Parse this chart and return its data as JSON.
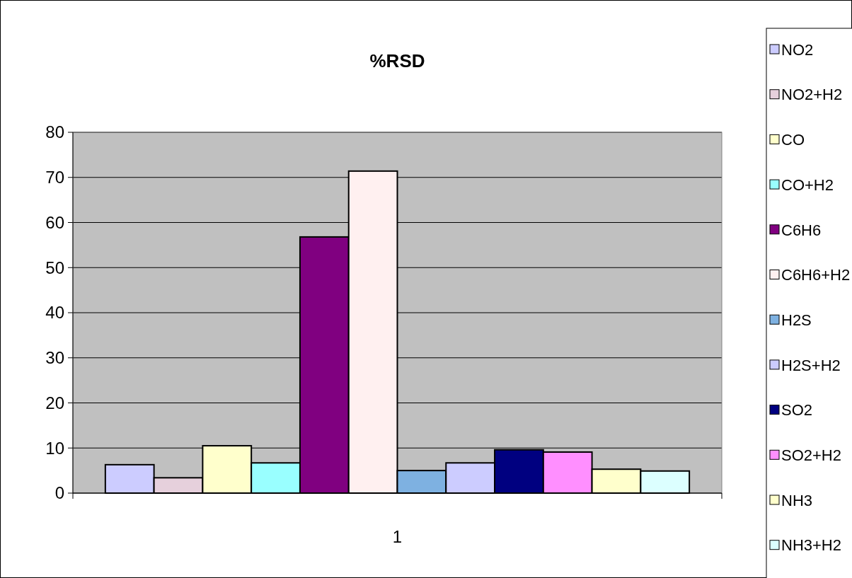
{
  "chart_data": {
    "type": "bar",
    "title": "%RSD",
    "categories": [
      "1"
    ],
    "series": [
      {
        "name": "NO2",
        "color": "#ccccff",
        "values": [
          6.3
        ]
      },
      {
        "name": "NO2+H2",
        "color": "#e6d0dc",
        "values": [
          3.4
        ]
      },
      {
        "name": "CO",
        "color": "#ffffcc",
        "values": [
          10.5
        ]
      },
      {
        "name": "CO+H2",
        "color": "#99ffff",
        "values": [
          6.7
        ]
      },
      {
        "name": "C6H6",
        "color": "#800080",
        "values": [
          56.8
        ]
      },
      {
        "name": "C6H6+H2",
        "color": "#fff0f0",
        "values": [
          71.4
        ]
      },
      {
        "name": "H2S",
        "color": "#7eb1e1",
        "values": [
          5.0
        ]
      },
      {
        "name": "H2S+H2",
        "color": "#ccccff",
        "values": [
          6.7
        ]
      },
      {
        "name": "SO2",
        "color": "#000080",
        "values": [
          9.6
        ]
      },
      {
        "name": "SO2+H2",
        "color": "#ff8fff",
        "values": [
          9.1
        ]
      },
      {
        "name": "NH3",
        "color": "#ffffcc",
        "values": [
          5.3
        ]
      },
      {
        "name": "NH3+H2",
        "color": "#dcffff",
        "values": [
          4.9
        ]
      }
    ],
    "ylim": [
      0,
      80
    ],
    "yticks": [
      0,
      10,
      20,
      30,
      40,
      50,
      60,
      70,
      80
    ],
    "grid": "y",
    "legend": "right"
  }
}
